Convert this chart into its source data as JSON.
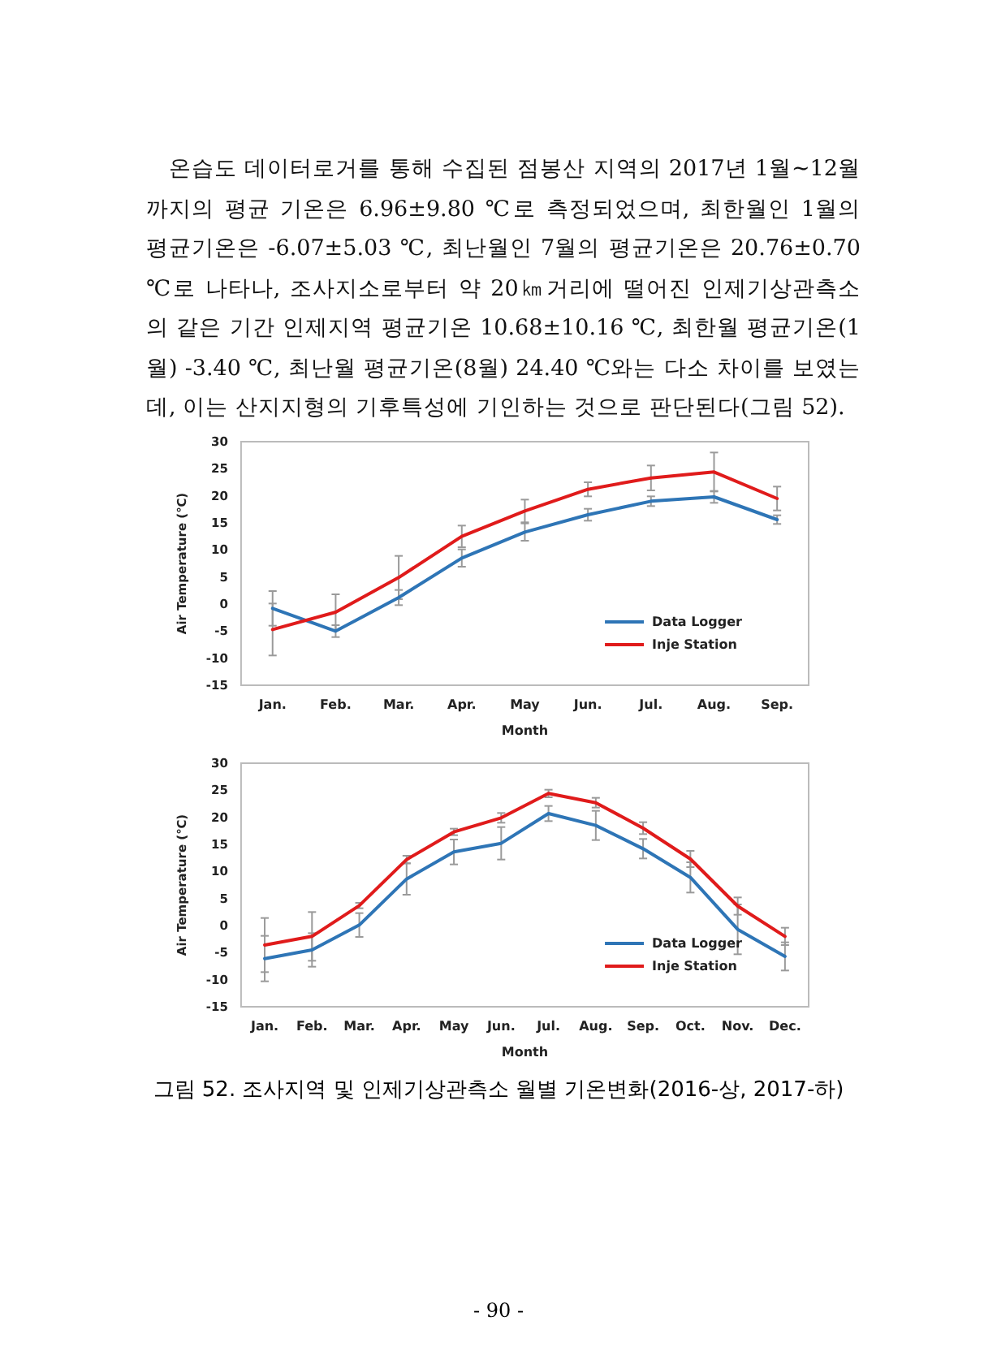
{
  "chart_data": [
    {
      "type": "line",
      "xlabel": "Month",
      "ylabel": "Air Temperature (℃)",
      "annotations": [
        "온습도 데이터로거를 통해 수집된 점봉산 지역의 2017년 1월~12월까지의 평균 기온은 6.96±9.80 ℃로 측정되었으며, 최한월인 1월의 평균기온은 -6.07±5.03 ℃, 최난월인 7월의 평균기온은 20.76±0.70 ℃로 나타나, 조사지소로부터 약 20㎞거리에 떨어진 인제기상관측소의 같은 기간 인제지역 평균기온 10.68±10.16 ℃, 최한월 평균기온(1월) -3.40 ℃, 최난월 평균기온(8월) 24.40 ℃와는 다소 차이를 보였는데, 이는 산지지형의 기후특성에 기인하는 것으로 판단된다(그림 52)."
      ],
      "categories": [
        "Jan.",
        "Feb.",
        "Mar.",
        "Apr.",
        "May",
        "Jun.",
        "Jul.",
        "Aug.",
        "Sep."
      ],
      "series": [
        {
          "name": "Data Logger",
          "color": "#2e75b6",
          "values": [
            -0.8,
            -5.0,
            1.2,
            8.5,
            13.3,
            16.5,
            19.0,
            19.8,
            15.6
          ],
          "errors": [
            3.2,
            1.1,
            1.4,
            1.6,
            1.6,
            1.1,
            0.9,
            1.1,
            0.8
          ]
        },
        {
          "name": "Inje Station",
          "color": "#e01b1b",
          "values": [
            -4.7,
            -1.5,
            4.9,
            12.5,
            17.2,
            21.2,
            23.3,
            24.4,
            19.5
          ],
          "errors": [
            4.8,
            3.3,
            4.0,
            2.0,
            2.1,
            1.3,
            2.3,
            3.6,
            2.2
          ]
        }
      ],
      "ylim": [
        -15,
        30
      ],
      "yticks": [
        -15,
        -10,
        -5,
        0,
        5,
        10,
        15,
        20,
        25,
        30
      ],
      "legend": "bottom right",
      "marker": "none",
      "grid": false
    },
    {
      "type": "line",
      "xlabel": "Month",
      "ylabel": "Air Temperature (℃)",
      "annotations": [
        "그림 52. 조사지역 및 인제기상관측소 월별 기온변화(2016-상, 2017-하)",
        "- 90 -"
      ],
      "categories": [
        "Jan.",
        "Feb.",
        "Mar.",
        "Apr.",
        "May",
        "Jun.",
        "Jul.",
        "Aug.",
        "Sep.",
        "Oct.",
        "Nov.",
        "Dec."
      ],
      "series": [
        {
          "name": "Data Logger",
          "color": "#2e75b6",
          "values": [
            -6.1,
            -4.5,
            0.1,
            8.6,
            13.6,
            15.2,
            20.7,
            18.5,
            14.2,
            8.9,
            -0.7,
            -5.7
          ],
          "errors": [
            4.2,
            3.1,
            2.2,
            2.9,
            2.3,
            3.0,
            1.4,
            2.7,
            1.8,
            2.8,
            4.6,
            2.6
          ]
        },
        {
          "name": "Inje Station",
          "color": "#e01b1b",
          "values": [
            -3.6,
            -2.0,
            3.7,
            12.2,
            17.3,
            19.9,
            24.4,
            22.7,
            18.0,
            12.3,
            3.6,
            -2.0
          ],
          "errors": [
            5.0,
            4.5,
            0.5,
            0.7,
            0.6,
            0.9,
            0.7,
            0.9,
            1.1,
            1.5,
            1.6,
            1.6
          ]
        }
      ],
      "ylim": [
        -15,
        30
      ],
      "yticks": [
        -15,
        -10,
        -5,
        0,
        5,
        10,
        15,
        20,
        25,
        30
      ],
      "legend": "bottom right",
      "marker": "none",
      "grid": false
    }
  ]
}
